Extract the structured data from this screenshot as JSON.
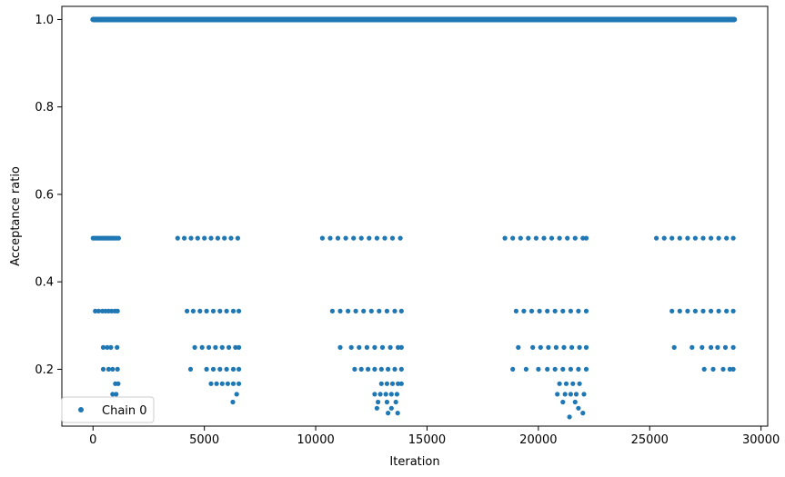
{
  "chart_data": {
    "type": "scatter",
    "title": "",
    "xlabel": "Iteration",
    "ylabel": "Acceptance ratio",
    "xlim": [
      -1400,
      30300
    ],
    "ylim": [
      0.07,
      1.03
    ],
    "xticks": [
      0,
      5000,
      10000,
      15000,
      20000,
      25000,
      30000
    ],
    "xtick_labels": [
      "0",
      "5000",
      "10000",
      "15000",
      "20000",
      "25000",
      "30000"
    ],
    "yticks": [
      0.2,
      0.4,
      0.6,
      0.8,
      1.0
    ],
    "ytick_labels": [
      "0.2",
      "0.4",
      "0.6",
      "0.8",
      "1.0"
    ],
    "grid": false,
    "legend_position": "lower-left",
    "series": [
      {
        "name": "Chain 0",
        "color": "#1f77b4",
        "marker": "circle",
        "full_band": {
          "y": 1.0,
          "x_start": 0,
          "x_end": 28800
        },
        "points": [
          [
            0,
            0.5
          ],
          [
            80,
            0.5
          ],
          [
            160,
            0.5
          ],
          [
            240,
            0.5
          ],
          [
            320,
            0.5
          ],
          [
            400,
            0.5
          ],
          [
            480,
            0.5
          ],
          [
            560,
            0.5
          ],
          [
            640,
            0.5
          ],
          [
            720,
            0.5
          ],
          [
            800,
            0.5
          ],
          [
            880,
            0.5
          ],
          [
            960,
            0.5
          ],
          [
            1050,
            0.5
          ],
          [
            1150,
            0.5
          ],
          [
            100,
            0.333
          ],
          [
            250,
            0.333
          ],
          [
            420,
            0.333
          ],
          [
            560,
            0.333
          ],
          [
            700,
            0.333
          ],
          [
            840,
            0.333
          ],
          [
            980,
            0.333
          ],
          [
            1100,
            0.333
          ],
          [
            460,
            0.25
          ],
          [
            640,
            0.25
          ],
          [
            800,
            0.25
          ],
          [
            1080,
            0.25
          ],
          [
            460,
            0.2
          ],
          [
            700,
            0.2
          ],
          [
            880,
            0.2
          ],
          [
            1100,
            0.2
          ],
          [
            1000,
            0.167
          ],
          [
            1130,
            0.167
          ],
          [
            880,
            0.143
          ],
          [
            1040,
            0.143
          ],
          [
            3800,
            0.5
          ],
          [
            4100,
            0.5
          ],
          [
            4400,
            0.5
          ],
          [
            4700,
            0.5
          ],
          [
            5000,
            0.5
          ],
          [
            5300,
            0.5
          ],
          [
            5600,
            0.5
          ],
          [
            5900,
            0.5
          ],
          [
            6200,
            0.5
          ],
          [
            6500,
            0.5
          ],
          [
            4220,
            0.333
          ],
          [
            4500,
            0.333
          ],
          [
            4800,
            0.333
          ],
          [
            5100,
            0.333
          ],
          [
            5400,
            0.333
          ],
          [
            5700,
            0.333
          ],
          [
            6000,
            0.333
          ],
          [
            6300,
            0.333
          ],
          [
            6550,
            0.333
          ],
          [
            4570,
            0.25
          ],
          [
            4900,
            0.25
          ],
          [
            5200,
            0.25
          ],
          [
            5500,
            0.25
          ],
          [
            5800,
            0.25
          ],
          [
            6100,
            0.25
          ],
          [
            6400,
            0.25
          ],
          [
            6550,
            0.25
          ],
          [
            4380,
            0.2
          ],
          [
            5100,
            0.2
          ],
          [
            5400,
            0.2
          ],
          [
            5700,
            0.2
          ],
          [
            6000,
            0.2
          ],
          [
            6300,
            0.2
          ],
          [
            6550,
            0.2
          ],
          [
            5300,
            0.167
          ],
          [
            5550,
            0.167
          ],
          [
            5800,
            0.167
          ],
          [
            6050,
            0.167
          ],
          [
            6300,
            0.167
          ],
          [
            6550,
            0.167
          ],
          [
            6450,
            0.143
          ],
          [
            6280,
            0.125
          ],
          [
            10300,
            0.5
          ],
          [
            10650,
            0.5
          ],
          [
            11000,
            0.5
          ],
          [
            11350,
            0.5
          ],
          [
            11700,
            0.5
          ],
          [
            12050,
            0.5
          ],
          [
            12400,
            0.5
          ],
          [
            12750,
            0.5
          ],
          [
            13100,
            0.5
          ],
          [
            13450,
            0.5
          ],
          [
            13800,
            0.5
          ],
          [
            10750,
            0.333
          ],
          [
            11100,
            0.333
          ],
          [
            11450,
            0.333
          ],
          [
            11800,
            0.333
          ],
          [
            12150,
            0.333
          ],
          [
            12500,
            0.333
          ],
          [
            12850,
            0.333
          ],
          [
            13200,
            0.333
          ],
          [
            13550,
            0.333
          ],
          [
            13850,
            0.333
          ],
          [
            11100,
            0.25
          ],
          [
            11600,
            0.25
          ],
          [
            11950,
            0.25
          ],
          [
            12300,
            0.25
          ],
          [
            12650,
            0.25
          ],
          [
            13000,
            0.25
          ],
          [
            13350,
            0.25
          ],
          [
            13700,
            0.25
          ],
          [
            13850,
            0.25
          ],
          [
            11750,
            0.2
          ],
          [
            12050,
            0.2
          ],
          [
            12350,
            0.2
          ],
          [
            12650,
            0.2
          ],
          [
            12950,
            0.2
          ],
          [
            13250,
            0.2
          ],
          [
            13550,
            0.2
          ],
          [
            13850,
            0.2
          ],
          [
            12950,
            0.167
          ],
          [
            13200,
            0.167
          ],
          [
            13450,
            0.167
          ],
          [
            13700,
            0.167
          ],
          [
            13850,
            0.167
          ],
          [
            12650,
            0.143
          ],
          [
            12900,
            0.143
          ],
          [
            13150,
            0.143
          ],
          [
            13400,
            0.143
          ],
          [
            13650,
            0.143
          ],
          [
            12800,
            0.125
          ],
          [
            13200,
            0.125
          ],
          [
            13600,
            0.125
          ],
          [
            12750,
            0.111
          ],
          [
            13400,
            0.111
          ],
          [
            13250,
            0.1
          ],
          [
            13680,
            0.1
          ],
          [
            18500,
            0.5
          ],
          [
            18850,
            0.5
          ],
          [
            19200,
            0.5
          ],
          [
            19550,
            0.5
          ],
          [
            19900,
            0.5
          ],
          [
            20250,
            0.5
          ],
          [
            20600,
            0.5
          ],
          [
            20950,
            0.5
          ],
          [
            21300,
            0.5
          ],
          [
            21650,
            0.5
          ],
          [
            22000,
            0.5
          ],
          [
            22150,
            0.5
          ],
          [
            19000,
            0.333
          ],
          [
            19350,
            0.333
          ],
          [
            19700,
            0.333
          ],
          [
            20050,
            0.333
          ],
          [
            20400,
            0.333
          ],
          [
            20750,
            0.333
          ],
          [
            21100,
            0.333
          ],
          [
            21450,
            0.333
          ],
          [
            21800,
            0.333
          ],
          [
            22150,
            0.333
          ],
          [
            19100,
            0.25
          ],
          [
            19750,
            0.25
          ],
          [
            20100,
            0.25
          ],
          [
            20450,
            0.25
          ],
          [
            20800,
            0.25
          ],
          [
            21150,
            0.25
          ],
          [
            21500,
            0.25
          ],
          [
            21850,
            0.25
          ],
          [
            22150,
            0.25
          ],
          [
            18850,
            0.2
          ],
          [
            19450,
            0.2
          ],
          [
            20000,
            0.2
          ],
          [
            20400,
            0.2
          ],
          [
            20750,
            0.2
          ],
          [
            21100,
            0.2
          ],
          [
            21450,
            0.2
          ],
          [
            21800,
            0.2
          ],
          [
            22150,
            0.2
          ],
          [
            20950,
            0.167
          ],
          [
            21250,
            0.167
          ],
          [
            21550,
            0.167
          ],
          [
            21850,
            0.167
          ],
          [
            20850,
            0.143
          ],
          [
            21200,
            0.143
          ],
          [
            21450,
            0.143
          ],
          [
            21700,
            0.143
          ],
          [
            22050,
            0.143
          ],
          [
            21100,
            0.125
          ],
          [
            21650,
            0.125
          ],
          [
            21800,
            0.111
          ],
          [
            21400,
            0.091
          ],
          [
            22000,
            0.1
          ],
          [
            25300,
            0.5
          ],
          [
            25650,
            0.5
          ],
          [
            26000,
            0.5
          ],
          [
            26350,
            0.5
          ],
          [
            26700,
            0.5
          ],
          [
            27050,
            0.5
          ],
          [
            27400,
            0.5
          ],
          [
            27750,
            0.5
          ],
          [
            28100,
            0.5
          ],
          [
            28450,
            0.5
          ],
          [
            28750,
            0.5
          ],
          [
            26000,
            0.333
          ],
          [
            26350,
            0.333
          ],
          [
            26700,
            0.333
          ],
          [
            27050,
            0.333
          ],
          [
            27400,
            0.333
          ],
          [
            27750,
            0.333
          ],
          [
            28100,
            0.333
          ],
          [
            28450,
            0.333
          ],
          [
            28750,
            0.333
          ],
          [
            26100,
            0.25
          ],
          [
            26900,
            0.25
          ],
          [
            27350,
            0.25
          ],
          [
            27750,
            0.25
          ],
          [
            28050,
            0.25
          ],
          [
            28400,
            0.25
          ],
          [
            28750,
            0.25
          ],
          [
            27450,
            0.2
          ],
          [
            27850,
            0.2
          ],
          [
            28300,
            0.2
          ],
          [
            28600,
            0.2
          ],
          [
            28750,
            0.2
          ]
        ]
      }
    ]
  }
}
